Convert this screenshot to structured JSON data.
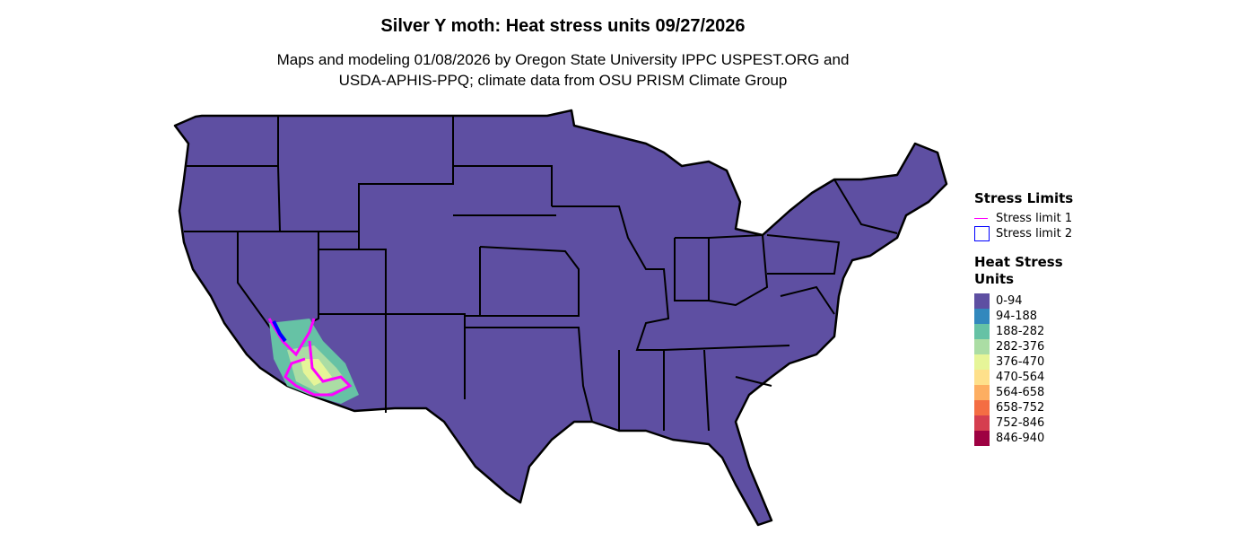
{
  "title": "Silver Y moth: Heat stress units 09/27/2026",
  "subtitle_line1": "Maps and modeling 01/08/2026 by Oregon State University IPPC USPEST.ORG and",
  "subtitle_line2": "USDA-APHIS-PPQ; climate data from OSU PRISM Climate Group",
  "map": {
    "region": "Contiguous United States",
    "base_fill": "#5E4FA2",
    "border_color": "#000000"
  },
  "legend_limits": {
    "title": "Stress Limits",
    "items": [
      {
        "label": "Stress limit 1",
        "color": "#FF00FF",
        "symbol": "line"
      },
      {
        "label": "Stress limit 2",
        "color": "#0000FF",
        "symbol": "box"
      }
    ]
  },
  "legend_units": {
    "title_line1": "Heat Stress",
    "title_line2": "Units",
    "items": [
      {
        "label": "0-94",
        "color": "#5E4FA2"
      },
      {
        "label": "94-188",
        "color": "#3288BD"
      },
      {
        "label": "188-282",
        "color": "#66C2A5"
      },
      {
        "label": "282-376",
        "color": "#ABDDA4"
      },
      {
        "label": "376-470",
        "color": "#E6F598"
      },
      {
        "label": "470-564",
        "color": "#FEE08B"
      },
      {
        "label": "564-658",
        "color": "#FDAE61"
      },
      {
        "label": "658-752",
        "color": "#F46D43"
      },
      {
        "label": "752-846",
        "color": "#D53E4F"
      },
      {
        "label": "846-940",
        "color": "#9E0142"
      }
    ]
  }
}
